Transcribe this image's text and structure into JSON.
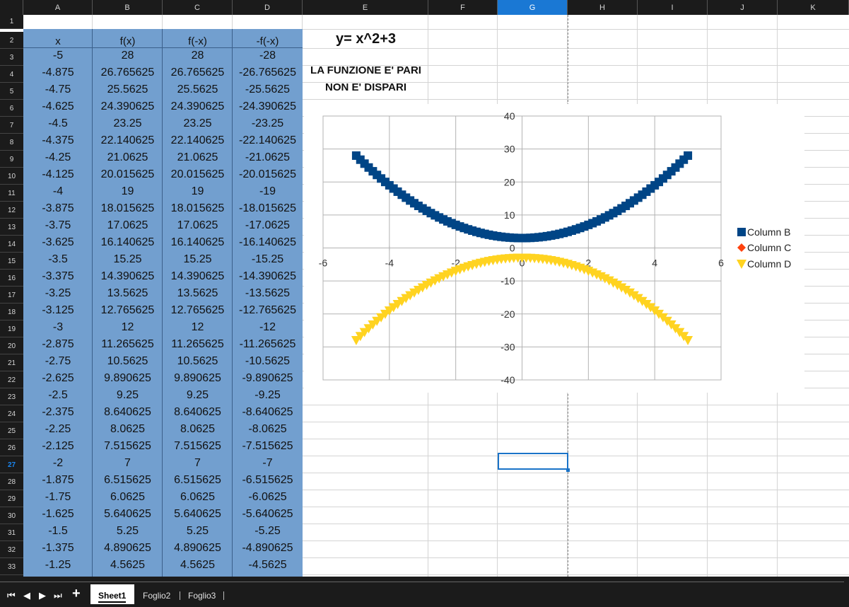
{
  "columns": [
    "A",
    "B",
    "C",
    "D",
    "E",
    "F",
    "G",
    "H",
    "I",
    "J",
    "K"
  ],
  "selected_column": "G",
  "selected_row": "27",
  "headers": {
    "x": "x",
    "fx": "f(x)",
    "fmx": "f(-x)",
    "mfmx": "-f(-x)"
  },
  "rows": [
    [
      "-5",
      "28",
      "28",
      "-28"
    ],
    [
      "-4.875",
      "26.765625",
      "26.765625",
      "-26.765625"
    ],
    [
      "-4.75",
      "25.5625",
      "25.5625",
      "-25.5625"
    ],
    [
      "-4.625",
      "24.390625",
      "24.390625",
      "-24.390625"
    ],
    [
      "-4.5",
      "23.25",
      "23.25",
      "-23.25"
    ],
    [
      "-4.375",
      "22.140625",
      "22.140625",
      "-22.140625"
    ],
    [
      "-4.25",
      "21.0625",
      "21.0625",
      "-21.0625"
    ],
    [
      "-4.125",
      "20.015625",
      "20.015625",
      "-20.015625"
    ],
    [
      "-4",
      "19",
      "19",
      "-19"
    ],
    [
      "-3.875",
      "18.015625",
      "18.015625",
      "-18.015625"
    ],
    [
      "-3.75",
      "17.0625",
      "17.0625",
      "-17.0625"
    ],
    [
      "-3.625",
      "16.140625",
      "16.140625",
      "-16.140625"
    ],
    [
      "-3.5",
      "15.25",
      "15.25",
      "-15.25"
    ],
    [
      "-3.375",
      "14.390625",
      "14.390625",
      "-14.390625"
    ],
    [
      "-3.25",
      "13.5625",
      "13.5625",
      "-13.5625"
    ],
    [
      "-3.125",
      "12.765625",
      "12.765625",
      "-12.765625"
    ],
    [
      "-3",
      "12",
      "12",
      "-12"
    ],
    [
      "-2.875",
      "11.265625",
      "11.265625",
      "-11.265625"
    ],
    [
      "-2.75",
      "10.5625",
      "10.5625",
      "-10.5625"
    ],
    [
      "-2.625",
      "9.890625",
      "9.890625",
      "-9.890625"
    ],
    [
      "-2.5",
      "9.25",
      "9.25",
      "-9.25"
    ],
    [
      "-2.375",
      "8.640625",
      "8.640625",
      "-8.640625"
    ],
    [
      "-2.25",
      "8.0625",
      "8.0625",
      "-8.0625"
    ],
    [
      "-2.125",
      "7.515625",
      "7.515625",
      "-7.515625"
    ],
    [
      "-2",
      "7",
      "7",
      "-7"
    ],
    [
      "-1.875",
      "6.515625",
      "6.515625",
      "-6.515625"
    ],
    [
      "-1.75",
      "6.0625",
      "6.0625",
      "-6.0625"
    ],
    [
      "-1.625",
      "5.640625",
      "5.640625",
      "-5.640625"
    ],
    [
      "-1.5",
      "5.25",
      "5.25",
      "-5.25"
    ],
    [
      "-1.375",
      "4.890625",
      "4.890625",
      "-4.890625"
    ],
    [
      "-1.25",
      "4.5625",
      "4.5625",
      "-4.5625"
    ]
  ],
  "equation": "y= x^2+3",
  "note_line1": "LA FUNZIONE E' PARI",
  "note_line2": "NON E' DISPARI",
  "tabs": {
    "active": "Sheet1",
    "others": [
      "Foglio2",
      "Foglio3"
    ]
  },
  "colors": {
    "header_bg": "#1b1b1b",
    "selected_header": "#1a78d4",
    "data_fill": "#729fcf",
    "series_b": "#004586",
    "series_c": "#ff420e",
    "series_d": "#ffd320"
  },
  "chart_data": {
    "type": "scatter",
    "x_range": [
      -5,
      5
    ],
    "x_step": 0.125,
    "xlim": [
      -6,
      6
    ],
    "ylim": [
      -40,
      40
    ],
    "x_ticks": [
      "-6",
      "-4",
      "-2",
      "0",
      "2",
      "4",
      "6"
    ],
    "y_ticks": [
      "40",
      "30",
      "20",
      "10",
      "0",
      "-10",
      "-20",
      "-30",
      "-40"
    ],
    "grid": true,
    "legend_position": "right",
    "series": [
      {
        "name": "Column B",
        "formula": "x^2+3",
        "marker": "square",
        "color": "#004586"
      },
      {
        "name": "Column C",
        "formula": "x^2+3",
        "marker": "diamond",
        "color": "#ff420e",
        "hidden_behind": "Column B"
      },
      {
        "name": "Column D",
        "formula": "-(x^2+3)",
        "marker": "triangle-down",
        "color": "#ffd320"
      }
    ]
  }
}
